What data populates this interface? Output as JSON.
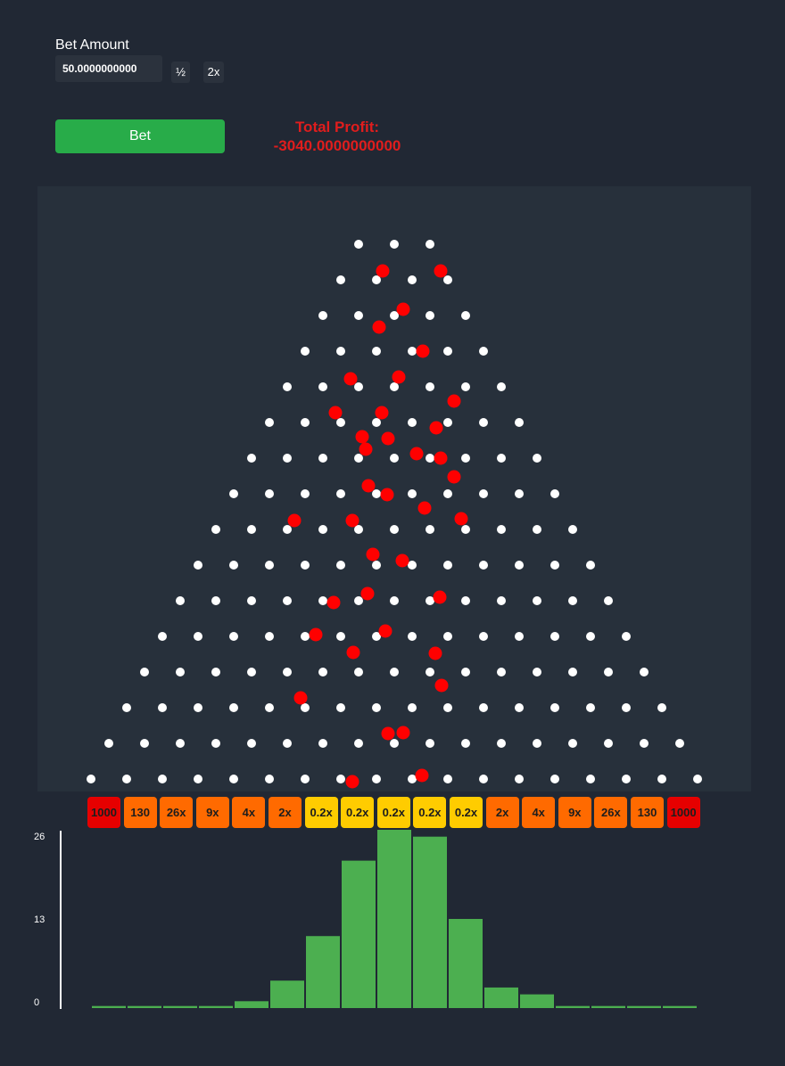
{
  "controls": {
    "bet_amount_label": "Bet Amount",
    "bet_amount_value": "50.0000000000",
    "half_label": "½",
    "double_label": "2x",
    "bet_label": "Bet"
  },
  "profit": {
    "label": "Total Profit:",
    "value": "-3040.0000000000"
  },
  "colors": {
    "background": "#212834",
    "board": "#27303b",
    "peg": "#ffffff",
    "ball": "#ff0000",
    "bet_button": "#28ac49",
    "profit_text": "#e01d1d",
    "bin_red": "#e60000",
    "bin_orange": "#ff6a00",
    "bin_yellow": "#ffcc00",
    "histogram_bar": "#4caf50"
  },
  "board": {
    "rows": 16
  },
  "multipliers": [
    {
      "label": "1000",
      "tier": "red"
    },
    {
      "label": "130",
      "tier": "orange"
    },
    {
      "label": "26x",
      "tier": "orange"
    },
    {
      "label": "9x",
      "tier": "orange"
    },
    {
      "label": "4x",
      "tier": "orange"
    },
    {
      "label": "2x",
      "tier": "orange"
    },
    {
      "label": "0.2x",
      "tier": "yellow"
    },
    {
      "label": "0.2x",
      "tier": "yellow"
    },
    {
      "label": "0.2x",
      "tier": "yellow"
    },
    {
      "label": "0.2x",
      "tier": "yellow"
    },
    {
      "label": "0.2x",
      "tier": "yellow"
    },
    {
      "label": "2x",
      "tier": "orange"
    },
    {
      "label": "4x",
      "tier": "orange"
    },
    {
      "label": "9x",
      "tier": "orange"
    },
    {
      "label": "26x",
      "tier": "orange"
    },
    {
      "label": "130",
      "tier": "orange"
    },
    {
      "label": "1000",
      "tier": "red"
    }
  ],
  "chart_data": {
    "type": "bar",
    "categories": [
      "1000",
      "130",
      "26x",
      "9x",
      "4x",
      "2x",
      "0.2x",
      "0.2x",
      "0.2x",
      "0.2x",
      "0.2x",
      "2x",
      "4x",
      "9x",
      "26x",
      "130",
      "1000"
    ],
    "values": [
      0.3,
      0.3,
      0.3,
      0.3,
      1,
      4,
      10.5,
      21.5,
      26,
      25,
      13,
      3,
      2,
      0.3,
      0.3,
      0.3,
      0.3
    ],
    "yticks": [
      "0",
      "13",
      "26"
    ],
    "ylim": [
      0,
      26
    ],
    "grid": false
  }
}
